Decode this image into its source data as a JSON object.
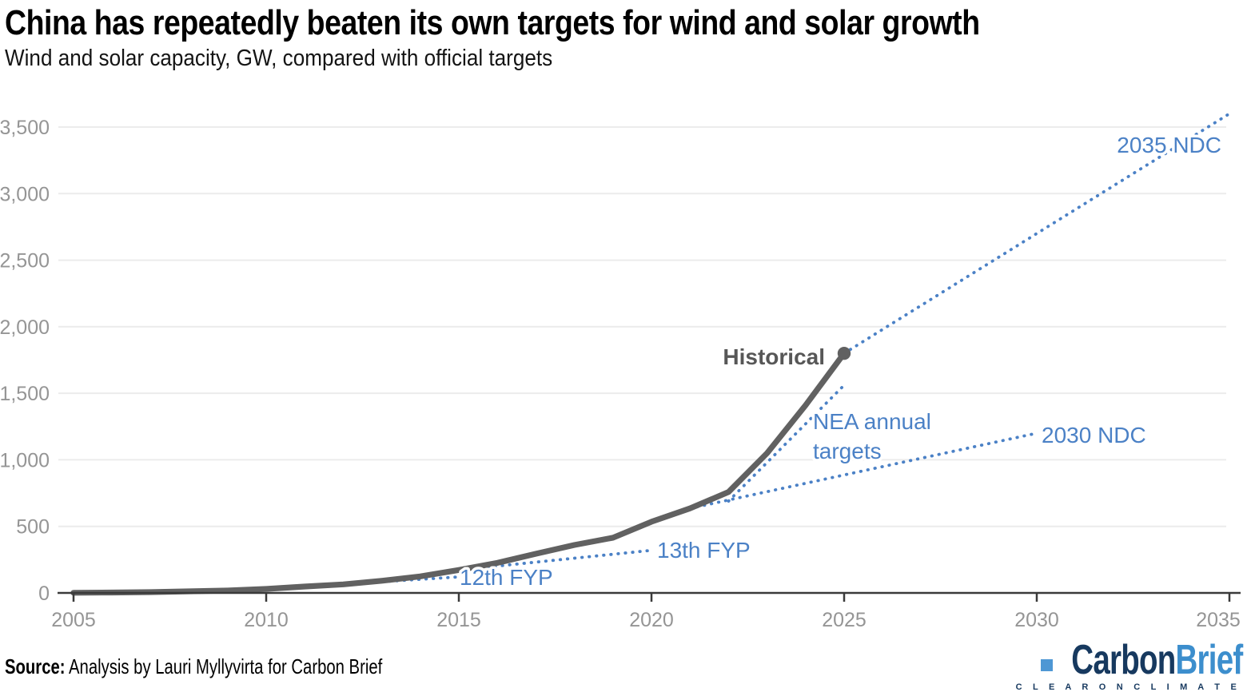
{
  "header": {},
  "chart_data": {
    "type": "line",
    "title": "China has repeatedly beaten its own targets for wind and solar growth",
    "subtitle": "Wind and solar capacity, GW, compared with official targets",
    "ylabel": "GW",
    "xlim": [
      2005,
      2035
    ],
    "ylim": [
      0,
      3500
    ],
    "grid": "horizontal",
    "legend_position": "none (inline annotations)",
    "x_ticks": [
      2005,
      2010,
      2015,
      2020,
      2025,
      2030,
      2035
    ],
    "x_tick_labels": [
      "2005",
      "2010",
      "2015",
      "2020",
      "2025",
      "2030",
      "2035"
    ],
    "y_ticks": [
      0,
      500,
      1000,
      1500,
      2000,
      2500,
      3000,
      3500
    ],
    "y_tick_labels": [
      "0",
      "500",
      "1,000",
      "1,500",
      "2,000",
      "2,500",
      "3,000",
      "3,500"
    ],
    "colors": {
      "historical": "#616161",
      "historical_label": "#575757",
      "target_blue": "#4b81c6",
      "grid": "#ececec",
      "axis": "#3a3a3a",
      "tick_label": "#959595"
    },
    "series": [
      {
        "name": "Historical",
        "style": "solid",
        "color": "#616161",
        "end_marker": true,
        "x": [
          2005,
          2006,
          2007,
          2008,
          2009,
          2010,
          2011,
          2012,
          2013,
          2014,
          2015,
          2016,
          2017,
          2018,
          2019,
          2020,
          2021,
          2022,
          2023,
          2024,
          2025
        ],
        "values": [
          1,
          3,
          6,
          12,
          18,
          30,
          48,
          64,
          91,
          124,
          172,
          226,
          294,
          360,
          415,
          535,
          635,
          758,
          1050,
          1410,
          1800
        ]
      },
      {
        "name": "12th FYP",
        "style": "dotted",
        "color": "#4b81c6",
        "x": [
          2010,
          2015
        ],
        "values": [
          30,
          120
        ]
      },
      {
        "name": "13th FYP",
        "style": "dotted",
        "color": "#4b81c6",
        "x": [
          2015,
          2020
        ],
        "values": [
          172,
          320
        ]
      },
      {
        "name": "NEA annual targets",
        "style": "dotted",
        "color": "#4b81c6",
        "x": [
          2022,
          2025
        ],
        "values": [
          690,
          1560
        ]
      },
      {
        "name": "2030 NDC",
        "style": "dotted",
        "color": "#4b81c6",
        "x": [
          2021,
          2030
        ],
        "values": [
          635,
          1200
        ]
      },
      {
        "name": "2035 NDC",
        "style": "dotted",
        "color": "#4b81c6",
        "x": [
          2025,
          2035
        ],
        "values": [
          1800,
          3600
        ]
      }
    ],
    "annotations": [
      {
        "text": "Historical",
        "x": 1032,
        "y": 456,
        "anchor": "end",
        "bold": true,
        "color": "#575757"
      },
      {
        "text": "12th FYP",
        "x": 575,
        "y": 732,
        "anchor": "start",
        "color": "#4b81c6"
      },
      {
        "text": "13th FYP",
        "x": 822,
        "y": 698,
        "anchor": "start",
        "color": "#4b81c6"
      },
      {
        "lines": [
          "NEA annual",
          "targets"
        ],
        "x": 1017,
        "y": 537,
        "anchor": "start",
        "color": "#4b81c6"
      },
      {
        "text": "2030 NDC",
        "x": 1303,
        "y": 554,
        "anchor": "start",
        "color": "#4b81c6"
      },
      {
        "text": "2035 NDC",
        "x": 1528,
        "y": 191,
        "anchor": "end",
        "color": "#4b81c6"
      }
    ]
  },
  "footer": {
    "source_label": "Source:",
    "source_text": " Analysis by Lauri Myllyvirta for Carbon Brief",
    "logo": {
      "carbon": "Carbon",
      "brief": "Brief",
      "tagline": "C L E A R   O N   C L I M A T E"
    }
  }
}
